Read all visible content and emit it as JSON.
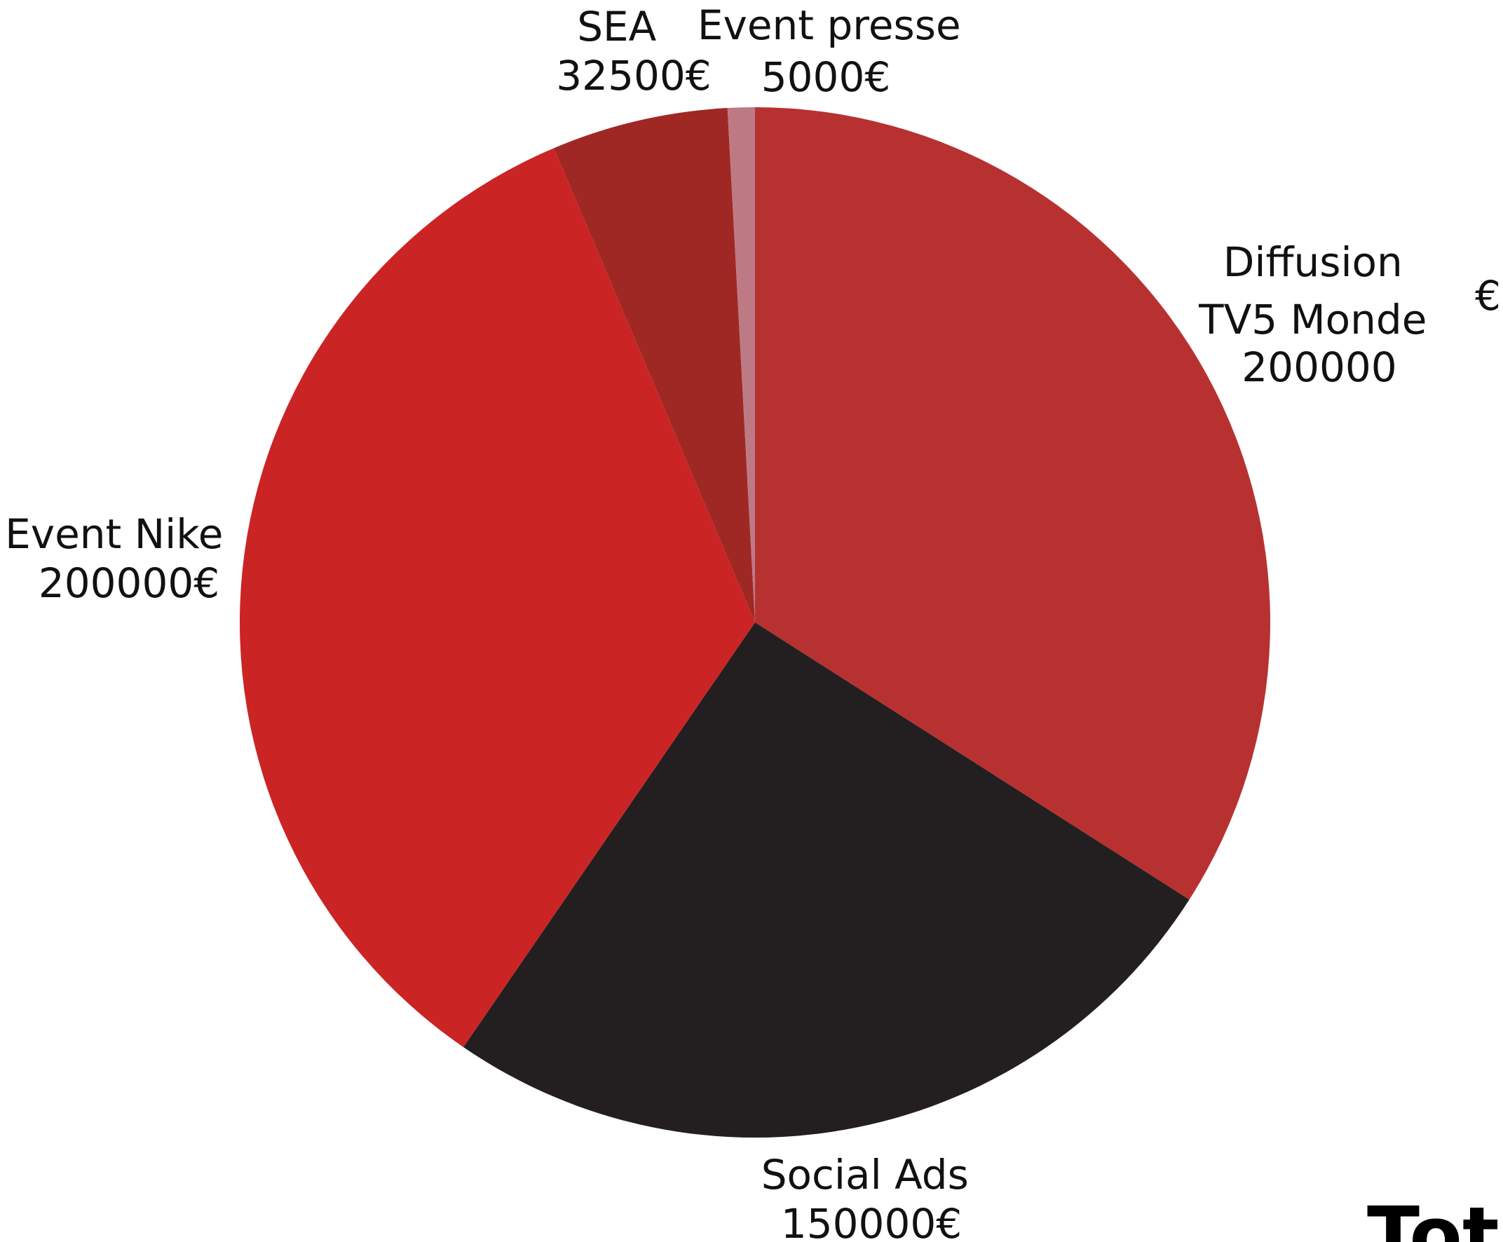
{
  "chart_data": {
    "type": "pie",
    "title": "",
    "slices": [
      {
        "label": "Diffusion TV5 Monde",
        "label_lines": [
          "Diffusion",
          "TV5 Monde",
          "200000"
        ],
        "value": 200000,
        "color": "#b83131"
      },
      {
        "label": "Social Ads",
        "label_lines": [
          "Social Ads",
          "150000€"
        ],
        "value": 150000,
        "color": "#231f20"
      },
      {
        "label": "Event Nike",
        "label_lines": [
          "Event Nike",
          "200000€"
        ],
        "value": 200000,
        "color": "#cb2424"
      },
      {
        "label": "SEA",
        "label_lines": [
          "SEA",
          "32500€"
        ],
        "value": 32500,
        "color": "#a02824"
      },
      {
        "label": "Event presse",
        "label_lines": [
          "Event presse",
          "5000€"
        ],
        "value": 5000,
        "color": "#bd7a85"
      }
    ],
    "extra_text": {
      "stray_currency": "€",
      "total_label": "Tota"
    }
  }
}
